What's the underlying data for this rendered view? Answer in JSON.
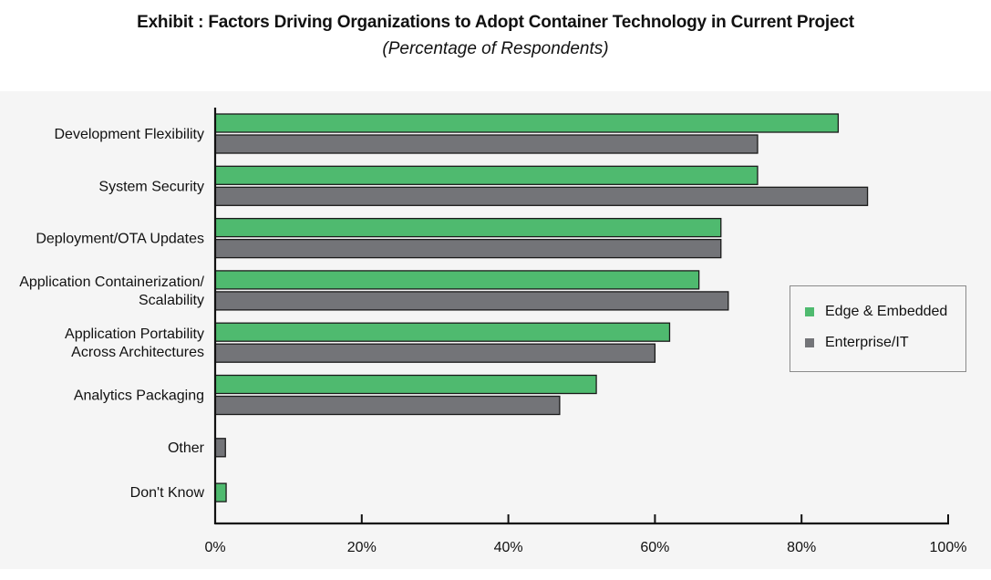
{
  "chart_data": {
    "type": "bar",
    "orientation": "horizontal",
    "title": "Exhibit : Factors Driving Organizations to Adopt Container Technology in Current Project",
    "subtitle": "(Percentage of Respondents)",
    "xlabel": "",
    "ylabel": "",
    "xlim": [
      0,
      100
    ],
    "x_ticks": [
      "0%",
      "20%",
      "40%",
      "60%",
      "80%",
      "100%"
    ],
    "x_tick_values": [
      0,
      20,
      40,
      60,
      80,
      100
    ],
    "grid": false,
    "legend_position": "right",
    "categories": [
      [
        "Development Flexibility"
      ],
      [
        "System Security"
      ],
      [
        "Deployment/OTA Updates"
      ],
      [
        "Application Containerization/",
        "Scalability"
      ],
      [
        "Application Portability",
        "Across Architectures"
      ],
      [
        "Analytics Packaging"
      ],
      [
        "Other"
      ],
      [
        "Don't Know"
      ]
    ],
    "series": [
      {
        "name": "Edge & Embedded",
        "color": "#4fba6f",
        "values": [
          85,
          74,
          69,
          66,
          62,
          52,
          null,
          1.5
        ]
      },
      {
        "name": "Enterprise/IT",
        "color": "#737478",
        "values": [
          74,
          89,
          69,
          70,
          60,
          47,
          1.4,
          null
        ]
      }
    ]
  }
}
